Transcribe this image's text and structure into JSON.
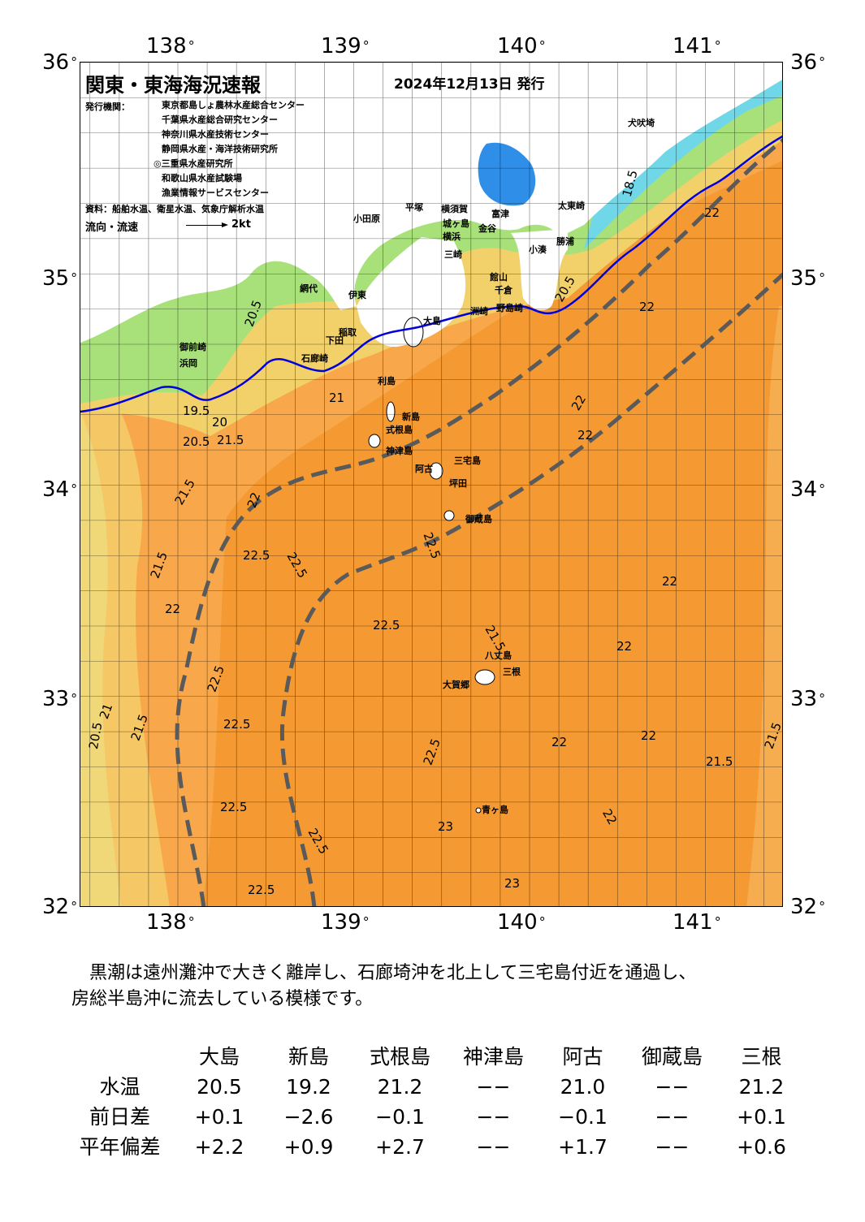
{
  "title": "関東・東海海況速報",
  "issue_date": "2024年12月13日 発行",
  "issuer_label": "発行機関：",
  "issuers": [
    "東京都島しょ農林水産総合センター",
    "千葉県水産総合研究センター",
    "神奈川県水産技術センター",
    "静岡県水産・海洋技術研究所",
    "◎三重県水産研究所",
    "和歌山県水産試験場",
    "漁業情報サービスセンター"
  ],
  "source": "資料：船舶水温、衛星水温、気象庁解析水温",
  "flow_label": "流向・流速",
  "flow_unit": "2kt",
  "lon_labels": [
    "138",
    "139",
    "140",
    "141"
  ],
  "lat_labels": [
    "36",
    "35",
    "34",
    "33",
    "32"
  ],
  "degree_symbol": "°",
  "places": [
    "犬吠埼",
    "太東崎",
    "勝浦",
    "小湊",
    "館山",
    "千倉",
    "野島崎",
    "洲崎",
    "金谷",
    "富津",
    "横須賀",
    "三崎",
    "城ヶ島",
    "平塚",
    "小田原",
    "横浜",
    "網代",
    "伊東",
    "稲取",
    "下田",
    "石廊崎",
    "御前崎",
    "浜岡",
    "大島",
    "利島",
    "新島",
    "式根島",
    "神津島",
    "三宅島",
    "阿古",
    "坪田",
    "御蔵島",
    "八丈島",
    "三根",
    "大賀郷",
    "青ヶ島"
  ],
  "isotherms": [
    "18.5",
    "19.5",
    "20",
    "20.5",
    "21",
    "21.5",
    "22",
    "22.5",
    "23"
  ],
  "summary_lines": [
    "黒潮は遠州灘沖で大きく離岸し、石廊埼沖を北上して三宅島付近を通過し、",
    "房総半島沖に流去している模様です。"
  ],
  "table": {
    "columns": [
      "大島",
      "新島",
      "式根島",
      "神津島",
      "阿古",
      "御蔵島",
      "三根"
    ],
    "rows": [
      {
        "label": "水温",
        "values": [
          "20.5",
          "19.2",
          "21.2",
          "−−",
          "21.0",
          "−−",
          "21.2"
        ]
      },
      {
        "label": "前日差",
        "values": [
          "+0.1",
          "−2.6",
          "−0.1",
          "−−",
          "−0.1",
          "−−",
          "+0.1"
        ]
      },
      {
        "label": "平年偏差",
        "values": [
          "+2.2",
          "+0.9",
          "+2.7",
          "−−",
          "+1.7",
          "−−",
          "+0.6"
        ]
      }
    ]
  },
  "colors": {
    "land": "#ffffff",
    "sea_warm": "#f39a30",
    "sea_mid": "#f8b35a",
    "sea_cool": "#f2d16a",
    "sea_cold": "#9fe07a",
    "coast_cold": "#6fd7e8",
    "lake": "#2f8fe8",
    "kuroshio": "#5a5a5a",
    "isoline": "#0000dd"
  }
}
